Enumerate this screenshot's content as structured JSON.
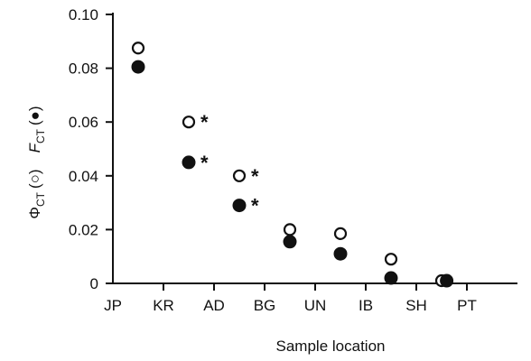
{
  "chart_data": {
    "type": "scatter",
    "xlabel": "Sample location",
    "ylabel": {
      "phi_symbol": "Φ",
      "phi_subscript": "CT",
      "phi_marker": "(○)",
      "f_symbol": "F",
      "f_subscript": "CT",
      "f_marker": "(●)"
    },
    "categories": [
      "JP",
      "KR",
      "AD",
      "BG",
      "UN",
      "IB",
      "SH",
      "PT"
    ],
    "ylim": [
      0,
      0.1
    ],
    "yticks": [
      {
        "value": 0,
        "label": "0"
      },
      {
        "value": 0.02,
        "label": "0.02"
      },
      {
        "value": 0.04,
        "label": "0.04"
      },
      {
        "value": 0.06,
        "label": "0.06"
      },
      {
        "value": 0.08,
        "label": "0.08"
      },
      {
        "value": 0.1,
        "label": "0.10"
      }
    ],
    "series": [
      {
        "name": "ΦCT",
        "marker": "open-circle",
        "x": [
          0.5,
          1.5,
          2.5,
          3.5,
          4.5,
          5.5,
          6.5
        ],
        "values": [
          0.0875,
          0.06,
          0.04,
          0.02,
          0.0185,
          0.009,
          0.001
        ],
        "significant": [
          false,
          true,
          true,
          false,
          false,
          false,
          false
        ]
      },
      {
        "name": "FCT",
        "marker": "filled-circle",
        "x": [
          0.5,
          1.5,
          2.5,
          3.5,
          4.5,
          5.5,
          6.6
        ],
        "values": [
          0.0805,
          0.045,
          0.029,
          0.0155,
          0.011,
          0.002,
          0.001
        ],
        "significant": [
          false,
          true,
          true,
          false,
          false,
          false,
          false
        ]
      }
    ],
    "significance_symbol": "*",
    "colors": {
      "axis": "#111111",
      "marker": "#111111",
      "open_fill": "#ffffff"
    }
  }
}
